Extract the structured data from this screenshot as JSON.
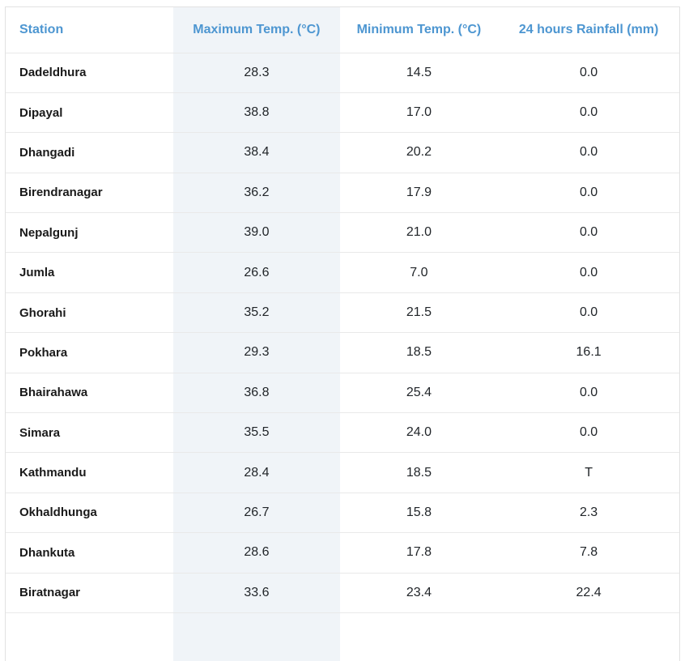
{
  "table": {
    "columns": [
      {
        "label": "Station",
        "align": "left",
        "highlighted": false
      },
      {
        "label": "Maximum Temp. (°C)",
        "align": "center",
        "highlighted": true
      },
      {
        "label": "Minimum Temp. (°C)",
        "align": "center",
        "highlighted": false
      },
      {
        "label": "24 hours Rainfall (mm)",
        "align": "center",
        "highlighted": false
      }
    ],
    "rows": [
      {
        "station": "Dadeldhura",
        "max_temp": "28.3",
        "min_temp": "14.5",
        "rainfall": "0.0"
      },
      {
        "station": "Dipayal",
        "max_temp": "38.8",
        "min_temp": "17.0",
        "rainfall": "0.0"
      },
      {
        "station": "Dhangadi",
        "max_temp": "38.4",
        "min_temp": "20.2",
        "rainfall": "0.0"
      },
      {
        "station": "Birendranagar",
        "max_temp": "36.2",
        "min_temp": "17.9",
        "rainfall": "0.0"
      },
      {
        "station": "Nepalgunj",
        "max_temp": "39.0",
        "min_temp": "21.0",
        "rainfall": "0.0"
      },
      {
        "station": "Jumla",
        "max_temp": "26.6",
        "min_temp": "7.0",
        "rainfall": "0.0"
      },
      {
        "station": "Ghorahi",
        "max_temp": "35.2",
        "min_temp": "21.5",
        "rainfall": "0.0"
      },
      {
        "station": "Pokhara",
        "max_temp": "29.3",
        "min_temp": "18.5",
        "rainfall": "16.1"
      },
      {
        "station": "Bhairahawa",
        "max_temp": "36.8",
        "min_temp": "25.4",
        "rainfall": "0.0"
      },
      {
        "station": "Simara",
        "max_temp": "35.5",
        "min_temp": "24.0",
        "rainfall": "0.0"
      },
      {
        "station": "Kathmandu",
        "max_temp": "28.4",
        "min_temp": "18.5",
        "rainfall": "T"
      },
      {
        "station": "Okhaldhunga",
        "max_temp": "26.7",
        "min_temp": "15.8",
        "rainfall": "2.3"
      },
      {
        "station": "Dhankuta",
        "max_temp": "28.6",
        "min_temp": "17.8",
        "rainfall": "7.8"
      },
      {
        "station": "Biratnagar",
        "max_temp": "33.6",
        "min_temp": "23.4",
        "rainfall": "22.4"
      }
    ]
  },
  "colors": {
    "header_text": "#4d96d1",
    "column_highlight_bg": "#f0f4f8",
    "row_border": "#e9e9e9",
    "outer_border": "#e2e2e2",
    "station_text": "#1a1a1a",
    "value_text": "#212529",
    "page_bg": "#ffffff"
  }
}
